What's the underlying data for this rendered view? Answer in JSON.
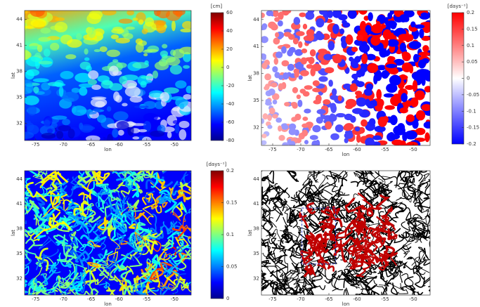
{
  "chart_data": [
    {
      "type": "heatmap",
      "xlabel": "lon",
      "ylabel": "lat",
      "xlim": [
        -77,
        -47
      ],
      "xticks": [
        -75,
        -70,
        -65,
        -60,
        -55,
        -50
      ],
      "ylim": [
        30,
        45
      ],
      "yticks": [
        32,
        35,
        38,
        41,
        44
      ],
      "colorbar_label": "[cm]",
      "clim": [
        -80,
        60
      ],
      "cticks": [
        60,
        40,
        20,
        0,
        -20,
        -40,
        -60,
        -80
      ],
      "colormap": [
        "#00008f",
        "#0000ff",
        "#0080ff",
        "#00ffff",
        "#80ff80",
        "#ffff00",
        "#ff8000",
        "#ff0000",
        "#800000"
      ]
    },
    {
      "type": "heatmap",
      "xlabel": "lon",
      "ylabel": "lat",
      "xlim": [
        -77,
        -47
      ],
      "xticks": [
        -75,
        -70,
        -65,
        -60,
        -55,
        -50
      ],
      "ylim": [
        30,
        45
      ],
      "yticks": [
        32,
        35,
        38,
        41,
        44
      ],
      "colorbar_label": "[days⁻¹]",
      "clim": [
        -0.2,
        0.2
      ],
      "cticks": [
        0.2,
        0.15,
        0.1,
        0.05,
        0,
        -0.05,
        -0.1,
        -0.15,
        -0.2
      ],
      "colormap": [
        "#0000ff",
        "#8080ff",
        "#ffffff",
        "#ff8080",
        "#ff0000"
      ]
    },
    {
      "type": "heatmap",
      "xlabel": "lon",
      "ylabel": "lat",
      "xlim": [
        -77,
        -47
      ],
      "xticks": [
        -75,
        -70,
        -65,
        -60,
        -55,
        -50
      ],
      "ylim": [
        30,
        45
      ],
      "yticks": [
        32,
        35,
        38,
        41,
        44
      ],
      "colorbar_label": "[days⁻¹]",
      "clim": [
        0,
        0.2
      ],
      "cticks": [
        0.2,
        0.15,
        0.1,
        0.05,
        0
      ],
      "colormap": [
        "#00008f",
        "#0000ff",
        "#0080ff",
        "#00ffff",
        "#80ff80",
        "#ffff00",
        "#ff8000",
        "#ff0000",
        "#800000"
      ]
    },
    {
      "type": "heatmap",
      "xlabel": "lon",
      "ylabel": "lat",
      "xlim": [
        -77,
        -47
      ],
      "xticks": [
        -75,
        -70,
        -65,
        -60,
        -55,
        -50
      ],
      "ylim": [
        30,
        45
      ],
      "yticks": [
        32,
        35,
        38,
        41,
        44
      ],
      "colormap": [
        "#ffffff",
        "#000000",
        "#c00000"
      ]
    }
  ]
}
